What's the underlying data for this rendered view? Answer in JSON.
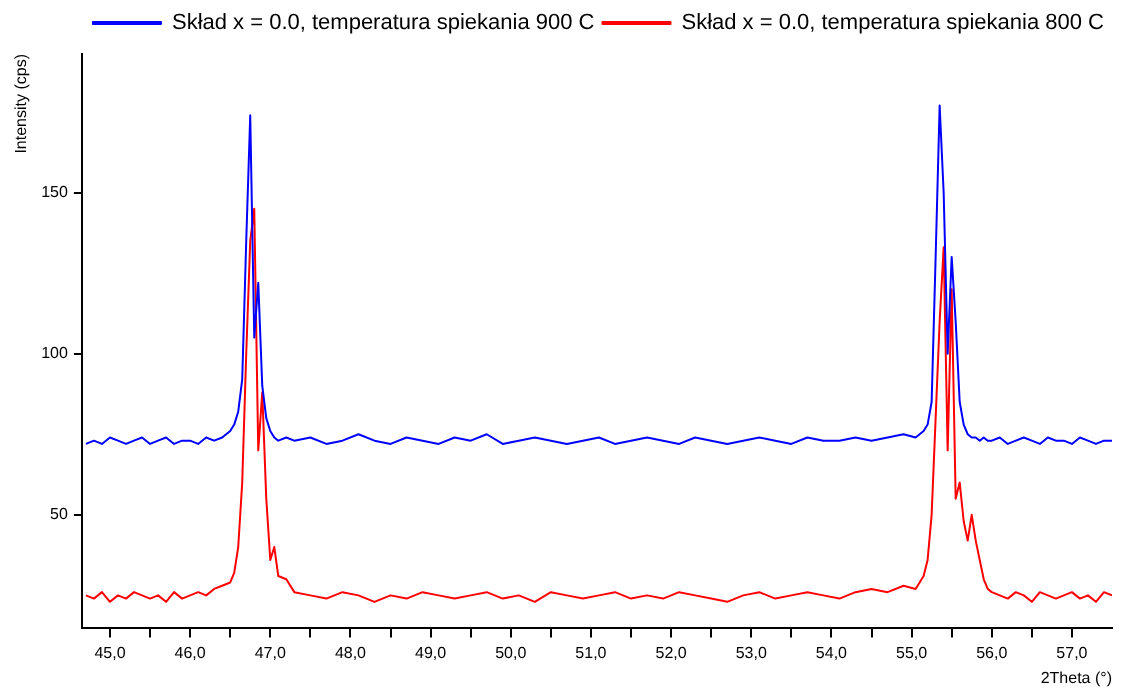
{
  "chart_data": {
    "type": "line",
    "xlabel": "2Theta (°)",
    "ylabel": "Intensity (cps)",
    "x": [
      44.7,
      44.8,
      44.9,
      45.0,
      45.1,
      45.2,
      45.3,
      45.4,
      45.5,
      45.6,
      45.7,
      45.8,
      45.9,
      46.0,
      46.1,
      46.2,
      46.3,
      46.4,
      46.5,
      46.55,
      46.6,
      46.65,
      46.7,
      46.75,
      46.8,
      46.85,
      46.9,
      46.95,
      47.0,
      47.05,
      47.1,
      47.2,
      47.3,
      47.5,
      47.7,
      47.9,
      48.1,
      48.3,
      48.5,
      48.7,
      48.9,
      49.1,
      49.3,
      49.5,
      49.7,
      49.9,
      50.1,
      50.3,
      50.5,
      50.7,
      50.9,
      51.1,
      51.3,
      51.5,
      51.7,
      51.9,
      52.1,
      52.3,
      52.5,
      52.7,
      52.9,
      53.1,
      53.3,
      53.5,
      53.7,
      53.9,
      54.1,
      54.3,
      54.5,
      54.7,
      54.9,
      55.05,
      55.1,
      55.15,
      55.2,
      55.25,
      55.3,
      55.35,
      55.4,
      55.45,
      55.5,
      55.55,
      55.6,
      55.65,
      55.7,
      55.75,
      55.8,
      55.85,
      55.9,
      55.95,
      56.0,
      56.1,
      56.2,
      56.3,
      56.4,
      56.5,
      56.6,
      56.7,
      56.8,
      56.9,
      57.0,
      57.1,
      57.2,
      57.3,
      57.4,
      57.5
    ],
    "series": [
      {
        "name": "Skład x = 0.0, temperatura spiekania 900 C",
        "color": "#0000ff",
        "values": [
          72,
          73,
          72,
          74,
          73,
          72,
          73,
          74,
          72,
          73,
          74,
          72,
          73,
          73,
          72,
          74,
          73,
          74,
          76,
          78,
          82,
          92,
          135,
          174,
          105,
          122,
          90,
          80,
          76,
          74,
          73,
          74,
          73,
          74,
          72,
          73,
          75,
          73,
          72,
          74,
          73,
          72,
          74,
          73,
          75,
          72,
          73,
          74,
          73,
          72,
          73,
          74,
          72,
          73,
          74,
          73,
          72,
          74,
          73,
          72,
          73,
          74,
          73,
          72,
          74,
          73,
          73,
          74,
          73,
          74,
          75,
          74,
          75,
          76,
          78,
          85,
          130,
          177,
          150,
          100,
          130,
          110,
          85,
          78,
          75,
          74,
          74,
          73,
          74,
          73,
          73,
          74,
          72,
          73,
          74,
          73,
          72,
          74,
          73,
          73,
          72,
          74,
          73,
          72,
          73,
          73
        ]
      },
      {
        "name": "Skład x = 0.0, temperatura spiekania 800 C",
        "color": "#ff0000",
        "values": [
          25,
          24,
          26,
          23,
          25,
          24,
          26,
          25,
          24,
          25,
          23,
          26,
          24,
          25,
          26,
          25,
          27,
          28,
          29,
          32,
          40,
          60,
          100,
          135,
          145,
          70,
          88,
          55,
          36,
          40,
          31,
          30,
          26,
          25,
          24,
          26,
          25,
          23,
          25,
          24,
          26,
          25,
          24,
          25,
          26,
          24,
          25,
          23,
          26,
          25,
          24,
          25,
          26,
          24,
          25,
          24,
          26,
          25,
          24,
          23,
          25,
          26,
          24,
          25,
          26,
          25,
          24,
          26,
          27,
          26,
          28,
          27,
          29,
          31,
          36,
          50,
          80,
          110,
          133,
          70,
          120,
          55,
          60,
          48,
          42,
          50,
          42,
          36,
          30,
          27,
          26,
          25,
          24,
          26,
          25,
          23,
          26,
          25,
          24,
          25,
          26,
          24,
          25,
          23,
          26,
          25
        ]
      }
    ],
    "xlim": [
      44.65,
      57.5
    ],
    "ylim": [
      15,
      193
    ],
    "xticks": [
      {
        "value": 45,
        "label": "45,0"
      },
      {
        "value": 45.5,
        "label": null
      },
      {
        "value": 46,
        "label": "46,0"
      },
      {
        "value": 46.5,
        "label": null
      },
      {
        "value": 47,
        "label": "47,0"
      },
      {
        "value": 47.5,
        "label": null
      },
      {
        "value": 48,
        "label": "48,0"
      },
      {
        "value": 48.5,
        "label": null
      },
      {
        "value": 49,
        "label": "49,0"
      },
      {
        "value": 49.5,
        "label": null
      },
      {
        "value": 50,
        "label": "50,0"
      },
      {
        "value": 50.5,
        "label": null
      },
      {
        "value": 51,
        "label": "51,0"
      },
      {
        "value": 51.5,
        "label": null
      },
      {
        "value": 52,
        "label": "52,0"
      },
      {
        "value": 52.5,
        "label": null
      },
      {
        "value": 53,
        "label": "53,0"
      },
      {
        "value": 53.5,
        "label": null
      },
      {
        "value": 54,
        "label": "54,0"
      },
      {
        "value": 54.5,
        "label": null
      },
      {
        "value": 55,
        "label": "55,0"
      },
      {
        "value": 55.5,
        "label": null
      },
      {
        "value": 56,
        "label": "56,0"
      },
      {
        "value": 56.5,
        "label": null
      },
      {
        "value": 57,
        "label": "57,0"
      }
    ],
    "yticks": [
      50,
      100,
      150
    ],
    "grid": false,
    "legend": "top right",
    "marker": "none",
    "line_style": "solid"
  }
}
